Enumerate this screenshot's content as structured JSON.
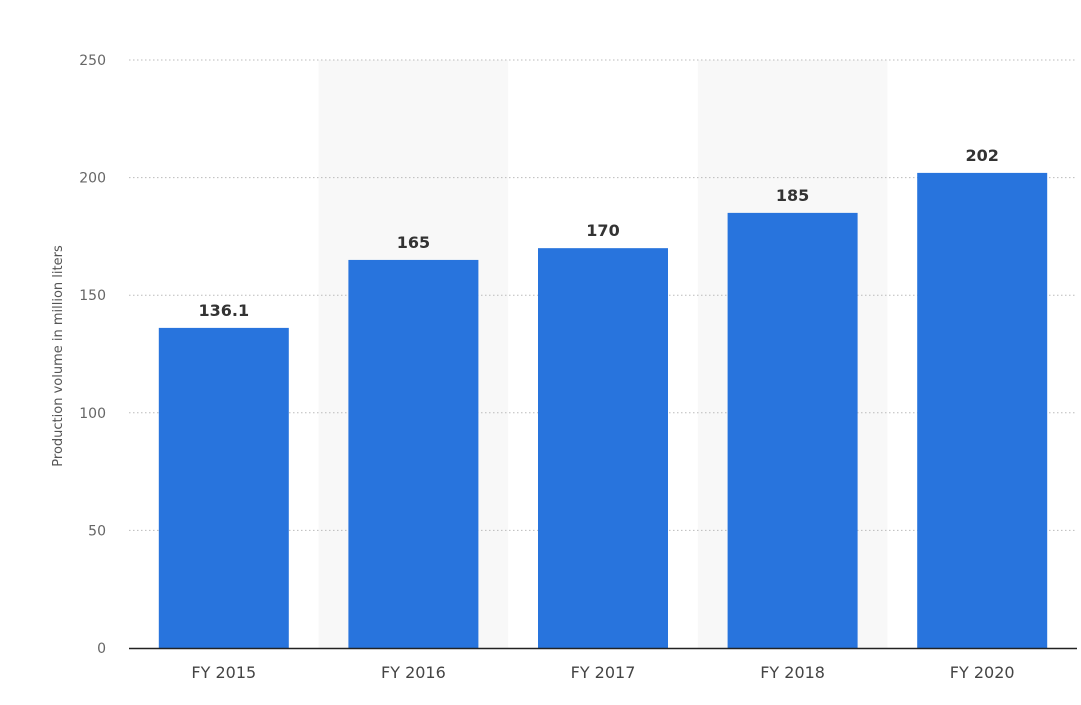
{
  "chart_data": {
    "type": "bar",
    "title": "",
    "xlabel": "",
    "ylabel": "Production volume in million liters",
    "categories": [
      "FY 2015",
      "FY 2016",
      "FY 2017",
      "FY 2018",
      "FY 2020"
    ],
    "values": [
      136.1,
      165,
      170,
      185,
      202
    ],
    "value_labels": [
      "136.1",
      "165",
      "170",
      "185",
      "202"
    ],
    "yticks": [
      0,
      50,
      100,
      150,
      200,
      250
    ],
    "ylim": [
      0,
      250
    ],
    "grid": true,
    "legend": "none",
    "colors": {
      "bar": "#2874dd",
      "band": "#f8f8f8",
      "grid": "#bbbbbb",
      "axis": "#222222"
    }
  }
}
